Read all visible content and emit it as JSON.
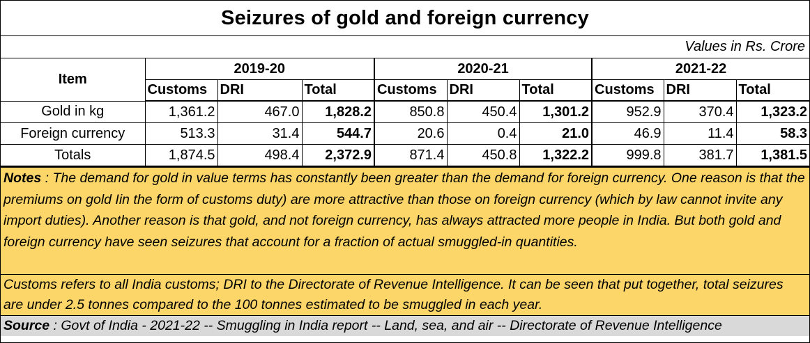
{
  "title": "Seizures of gold and foreign currency",
  "units": "Values in Rs. Crore",
  "table": {
    "item_header": "Item",
    "years": [
      "2019-20",
      "2020-21",
      "2021-22"
    ],
    "sub_headers": [
      "Customs",
      "DRI",
      "Total"
    ],
    "rows": [
      {
        "label": "Gold in kg",
        "values": [
          "1,361.2",
          "467.0",
          "1,828.2",
          "850.8",
          "450.4",
          "1,301.2",
          "952.9",
          "370.4",
          "1,323.2"
        ]
      },
      {
        "label": "Foreign currency",
        "values": [
          "513.3",
          "31.4",
          "544.7",
          "20.6",
          "0.4",
          "21.0",
          "46.9",
          "11.4",
          "58.3"
        ]
      },
      {
        "label": "Totals",
        "values": [
          "1,874.5",
          "498.4",
          "2,372.9",
          "871.4",
          "450.8",
          "1,322.2",
          "999.8",
          "381.7",
          "1,381.5"
        ]
      }
    ]
  },
  "notes": {
    "label": "Notes",
    "text": " : The demand for gold in value terms has constantly been greater than the demand for foreign currency.  One reason is that the premiums on gold Iin the form of customs duty) are more attractive than those on foreign currency (which by law cannot invite any import duties). Another reason is that gold, and not foreign currency, has always attracted more people in India.  But both gold and foreign currency have seen seizures that account for a fraction of actual smuggled-in quantities."
  },
  "customs_note": "Customs refers to all India customs; DRI to the Directorate of Revenue Intelligence.  It can be seen that put together, total seizures are  under 2.5 tonnes compared to the 100 tonnes estimated to be smuggled in each year.",
  "source": {
    "label": "Source",
    "text": " : Govt of India - 2021-22 -- Smuggling in India report -- Land, sea, and air -- Directorate of Revenue Intelligence"
  },
  "colors": {
    "notes_background": "#fdd66a",
    "source_background": "#d9d9d9"
  }
}
